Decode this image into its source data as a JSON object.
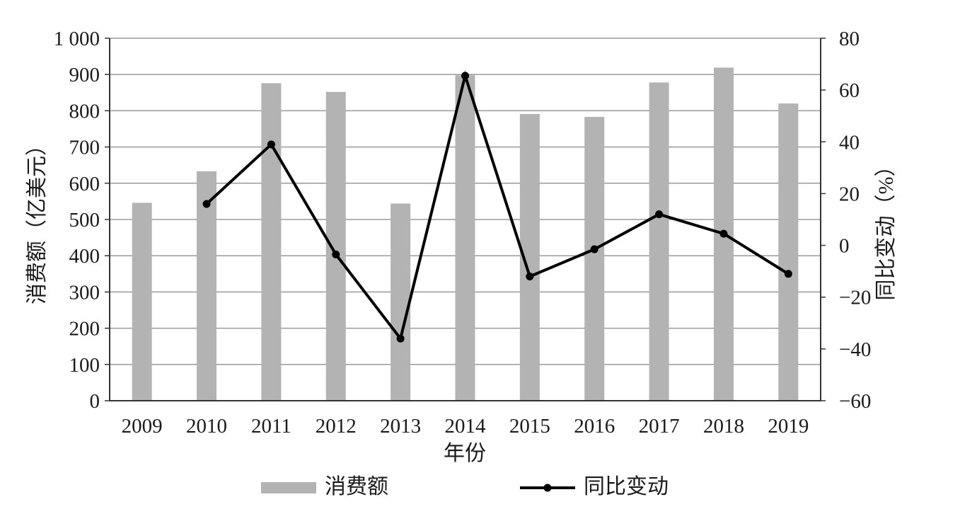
{
  "chart_data": {
    "type": "bar",
    "categories": [
      "2009",
      "2010",
      "2011",
      "2012",
      "2013",
      "2014",
      "2015",
      "2016",
      "2017",
      "2018",
      "2019"
    ],
    "series": [
      {
        "name": "消费额",
        "type": "bar",
        "axis": "left",
        "color": "#b3b3b3",
        "values": [
          546,
          633,
          876,
          852,
          544,
          898,
          791,
          783,
          878,
          919,
          820
        ]
      },
      {
        "name": "同比变动",
        "type": "line",
        "axis": "right",
        "color": "#000000",
        "values": [
          null,
          16,
          39,
          -3.5,
          -36,
          65.5,
          -12,
          -1.5,
          12,
          4.5,
          -11
        ]
      }
    ],
    "xlabel": "年份",
    "ylabel": "消费额（亿美元）",
    "y2label": "同比变动（%）",
    "ylim": [
      0,
      1000
    ],
    "y2lim": [
      -60,
      80
    ],
    "yticks": [
      "0",
      "100",
      "200",
      "300",
      "400",
      "500",
      "600",
      "700",
      "800",
      "900",
      "1 000"
    ],
    "y2ticks": [
      "−60",
      "−40",
      "−20",
      "0",
      "20",
      "40",
      "60",
      "80"
    ],
    "grid": true,
    "legend_position": "bottom"
  }
}
